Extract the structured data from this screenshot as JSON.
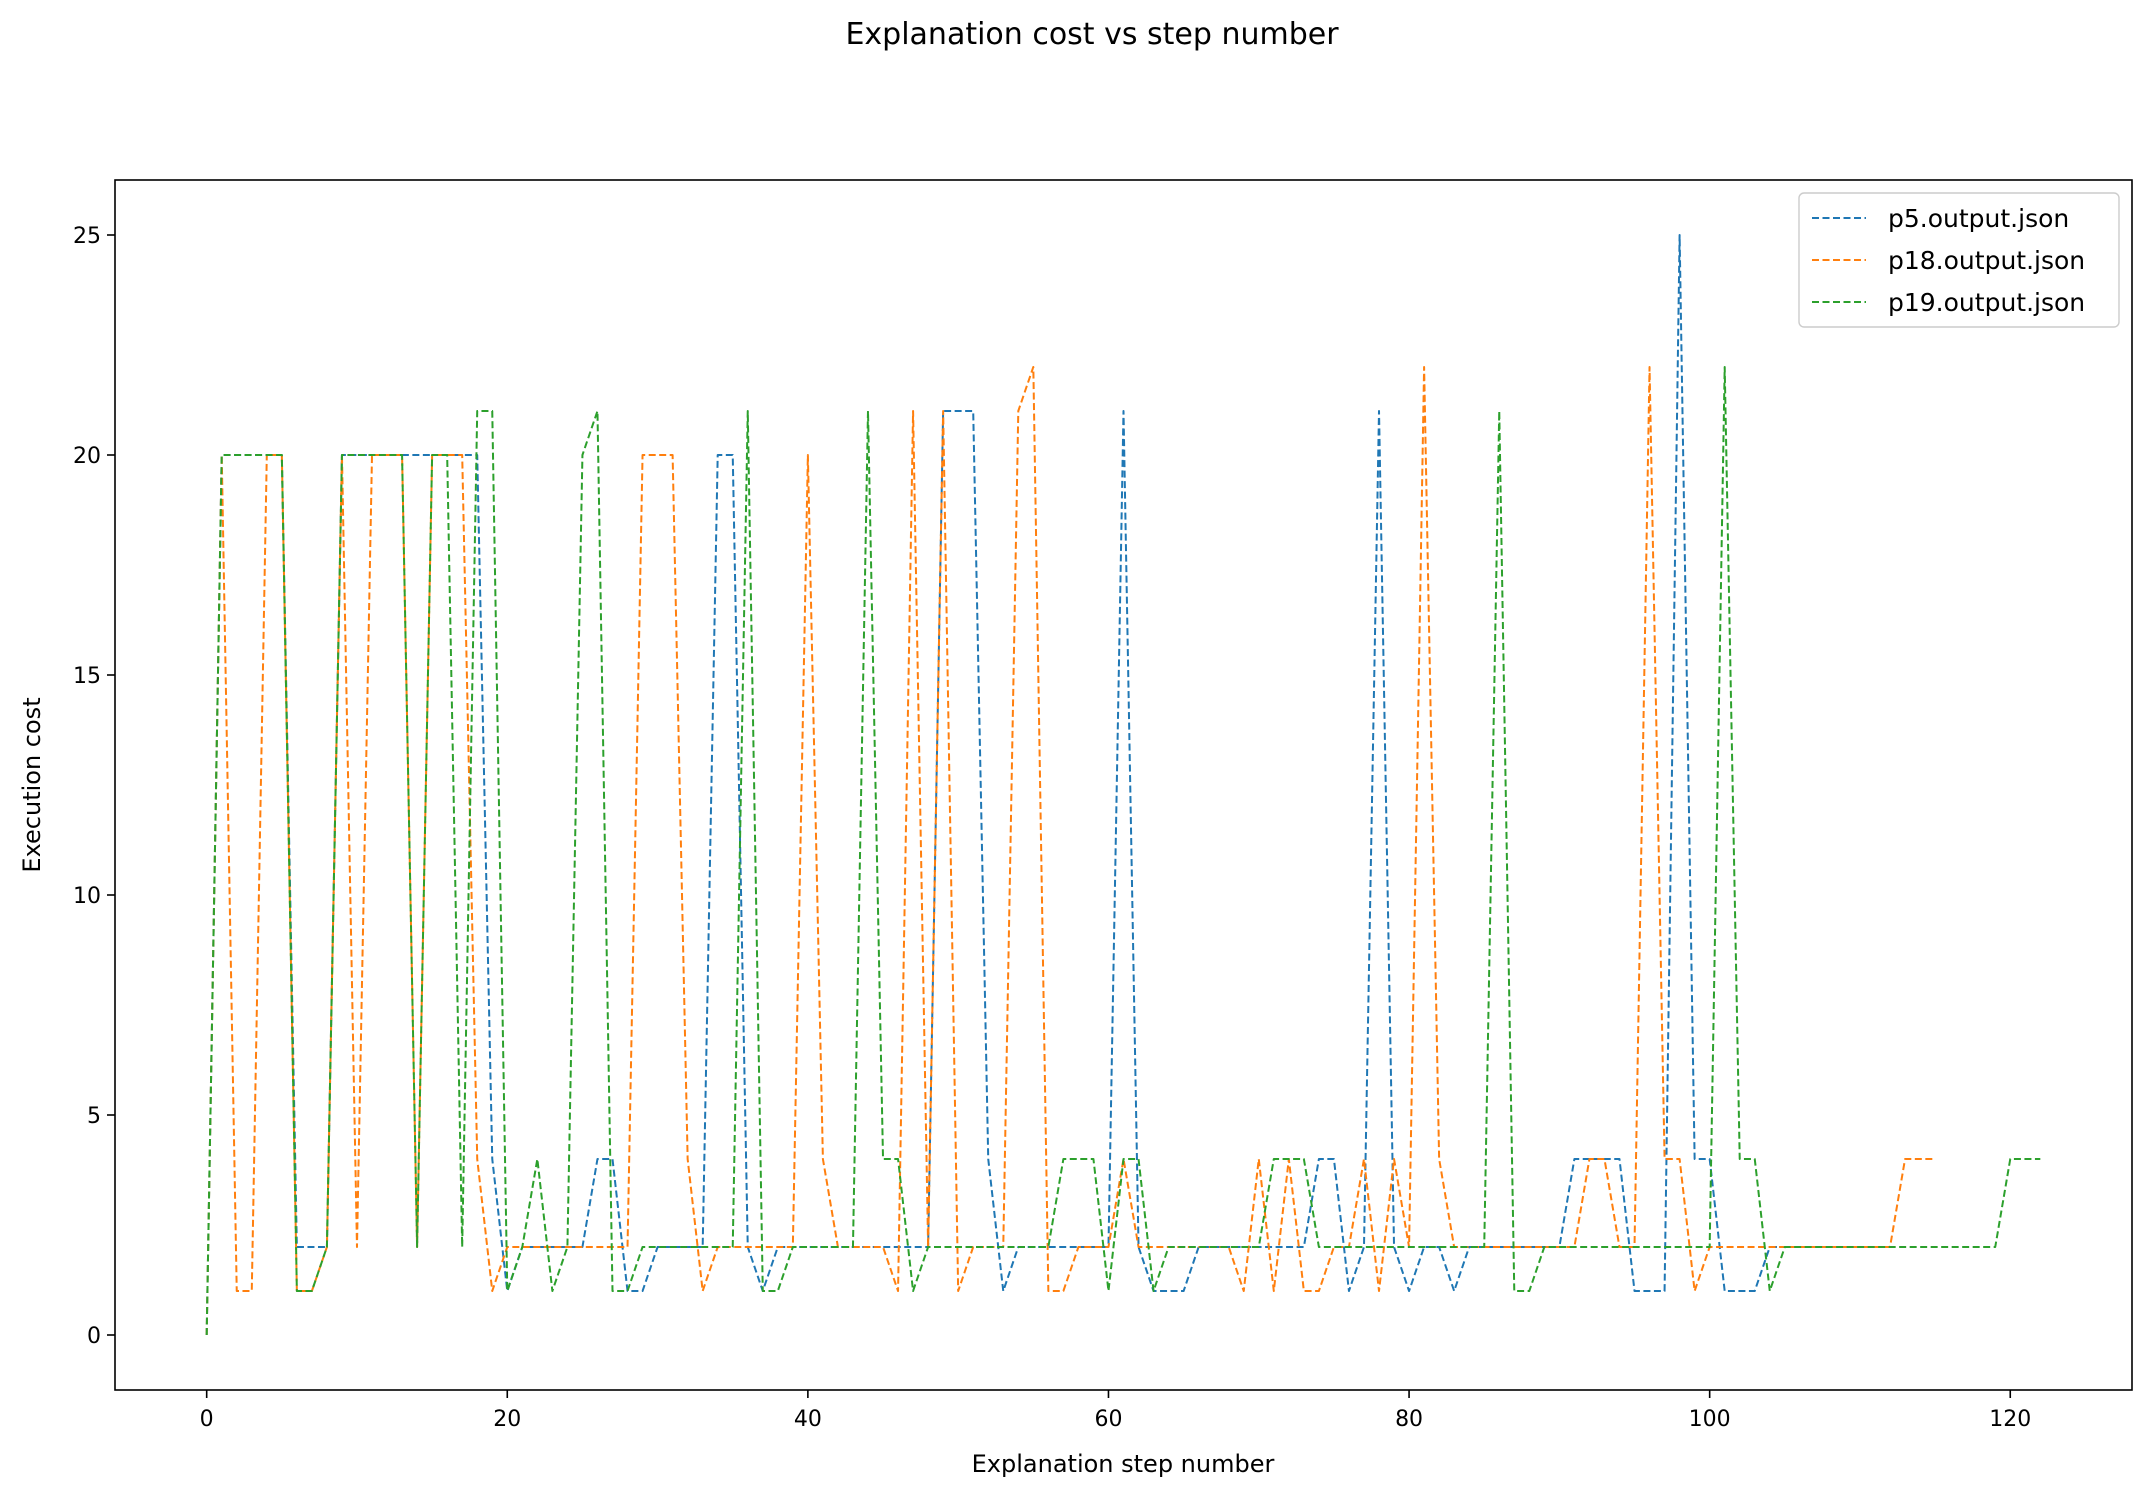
{
  "chart_data": {
    "type": "line",
    "title": "Explanation cost vs step number",
    "xlabel": "Explanation step number",
    "ylabel": "Execution cost",
    "xlim": [
      -6.1,
      128.1
    ],
    "ylim": [
      -1.25,
      26.25
    ],
    "xticks": [
      0,
      20,
      40,
      60,
      80,
      100,
      120
    ],
    "yticks": [
      0,
      5,
      10,
      15,
      20,
      25
    ],
    "grid": false,
    "legend_position": "top-right",
    "line_style": "dashed",
    "series": [
      {
        "name": "p5.output.json",
        "color": "#1f77b4",
        "values": [
          0,
          20,
          20,
          20,
          20,
          20,
          2,
          2,
          2,
          20,
          20,
          20,
          20,
          20,
          20,
          20,
          20,
          20,
          20,
          4,
          1,
          2,
          2,
          2,
          2,
          2,
          4,
          4,
          1,
          1,
          2,
          2,
          2,
          2,
          20,
          20,
          2,
          1,
          2,
          2,
          2,
          2,
          2,
          2,
          2,
          2,
          2,
          2,
          2,
          21,
          21,
          21,
          4,
          1,
          2,
          2,
          2,
          2,
          2,
          2,
          2,
          21,
          2,
          1,
          1,
          1,
          2,
          2,
          2,
          2,
          2,
          2,
          2,
          2,
          4,
          4,
          1,
          2,
          21,
          2,
          1,
          2,
          2,
          1,
          2,
          2,
          2,
          2,
          2,
          2,
          2,
          4,
          4,
          4,
          4,
          1,
          1,
          1,
          25,
          4,
          4,
          1,
          1,
          1,
          2,
          2,
          2,
          2,
          2,
          2,
          2,
          2,
          2
        ]
      },
      {
        "name": "p18.output.json",
        "color": "#ff7f0e",
        "values": [
          0,
          20,
          1,
          1,
          20,
          20,
          1,
          1,
          2,
          20,
          2,
          20,
          20,
          20,
          2,
          20,
          20,
          20,
          4,
          1,
          2,
          2,
          2,
          2,
          2,
          2,
          2,
          2,
          2,
          20,
          20,
          20,
          4,
          1,
          2,
          2,
          2,
          2,
          2,
          2,
          20,
          4,
          2,
          2,
          2,
          2,
          1,
          21,
          2,
          21,
          1,
          2,
          2,
          2,
          21,
          22,
          1,
          1,
          2,
          2,
          2,
          4,
          2,
          2,
          2,
          2,
          2,
          2,
          2,
          1,
          4,
          1,
          4,
          1,
          1,
          2,
          2,
          4,
          1,
          4,
          2,
          22,
          4,
          2,
          2,
          2,
          2,
          2,
          2,
          2,
          2,
          2,
          4,
          4,
          2,
          2,
          22,
          4,
          4,
          1,
          2,
          2,
          2,
          2,
          2,
          2,
          2,
          2,
          2,
          2,
          2,
          2,
          2,
          4,
          4,
          4
        ]
      },
      {
        "name": "p19.output.json",
        "color": "#2ca02c",
        "values": [
          0,
          20,
          20,
          20,
          20,
          20,
          1,
          1,
          2,
          20,
          20,
          20,
          20,
          20,
          2,
          20,
          20,
          2,
          21,
          21,
          1,
          2,
          4,
          1,
          2,
          20,
          21,
          1,
          1,
          2,
          2,
          2,
          2,
          2,
          2,
          2,
          21,
          1,
          1,
          2,
          2,
          2,
          2,
          2,
          21,
          4,
          4,
          1,
          2,
          2,
          2,
          2,
          2,
          2,
          2,
          2,
          2,
          4,
          4,
          4,
          1,
          4,
          4,
          1,
          2,
          2,
          2,
          2,
          2,
          2,
          2,
          4,
          4,
          4,
          2,
          2,
          2,
          2,
          2,
          2,
          2,
          2,
          2,
          2,
          2,
          2,
          21,
          1,
          1,
          2,
          2,
          2,
          2,
          2,
          2,
          2,
          2,
          2,
          2,
          2,
          2,
          22,
          4,
          4,
          1,
          2,
          2,
          2,
          2,
          2,
          2,
          2,
          2,
          2,
          2,
          2,
          2,
          2,
          2,
          2,
          4,
          4,
          4
        ]
      }
    ]
  }
}
